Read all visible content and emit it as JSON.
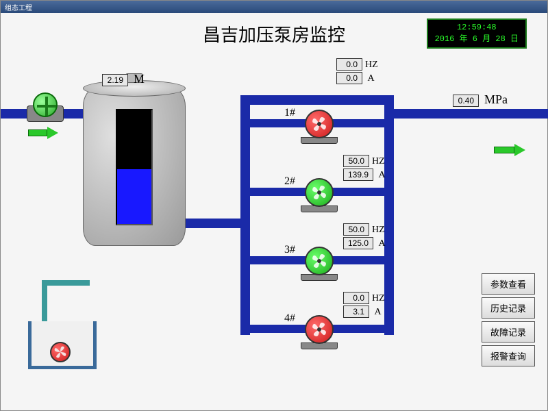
{
  "app": {
    "titlebar": "组态工程"
  },
  "clock": {
    "time": "12:59:48",
    "date": "2016 年 6 月 28 日"
  },
  "title": "昌吉加压泵房监控",
  "tank": {
    "level_label": "2.19",
    "level_unit": "M",
    "fill_pct": 48
  },
  "outlet": {
    "pressure": "0.40",
    "unit": "MPa"
  },
  "colors": {
    "pipe": "#1a2aa8",
    "arrow": "#2ac82a",
    "fan_on": "#1aaa1a",
    "fan_off": "#cc1a1a",
    "bg": "#f5f5f5"
  },
  "pumps": [
    {
      "label": "1#",
      "hz": "0.0",
      "amp": "0.0",
      "state": "off"
    },
    {
      "label": "2#",
      "hz": "50.0",
      "amp": "139.9",
      "state": "on"
    },
    {
      "label": "3#",
      "hz": "50.0",
      "amp": "125.0",
      "state": "on"
    },
    {
      "label": "4#",
      "hz": "0.0",
      "amp": "3.1",
      "state": "off"
    }
  ],
  "buttons": [
    "参数查看",
    "历史记录",
    "故障记录",
    "报警查询"
  ]
}
